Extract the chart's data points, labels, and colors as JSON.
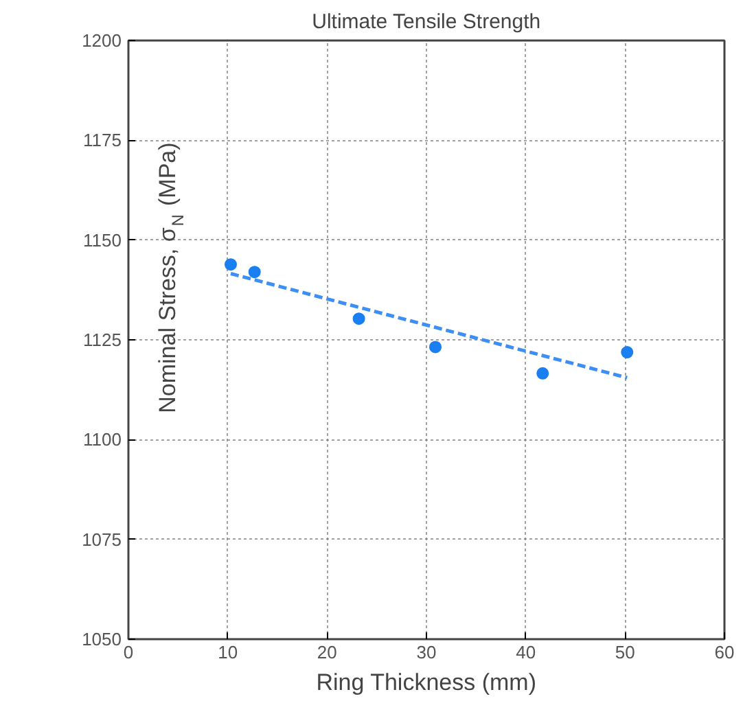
{
  "chart_data": {
    "type": "scatter",
    "title": "Ultimate Tensile Strength",
    "xlabel": "Ring Thickness (mm)",
    "ylabel": "Nominal Stress, σ$_{N}$ (MPa)",
    "x": [
      10.3,
      12.7,
      23.2,
      30.9,
      41.7,
      50.2
    ],
    "series": [
      {
        "color": "#1a7ff0",
        "marker": "circle",
        "values": [
          1143.9,
          1142.0,
          1130.3,
          1123.2,
          1116.6,
          1121.9
        ]
      },
      {
        "type": "line",
        "color": "#3d8ef5",
        "line_style": "dashed",
        "x": [
          10.3,
          50.2
        ],
        "values": [
          1141.6,
          1115.5
        ]
      }
    ],
    "xlim": [
      0,
      60
    ],
    "ylim": [
      1050,
      1200
    ],
    "xticks": [
      0,
      10,
      20,
      30,
      40,
      50,
      60
    ],
    "yticks": [
      1050,
      1075,
      1100,
      1125,
      1150,
      1175,
      1200
    ],
    "grid": true
  }
}
